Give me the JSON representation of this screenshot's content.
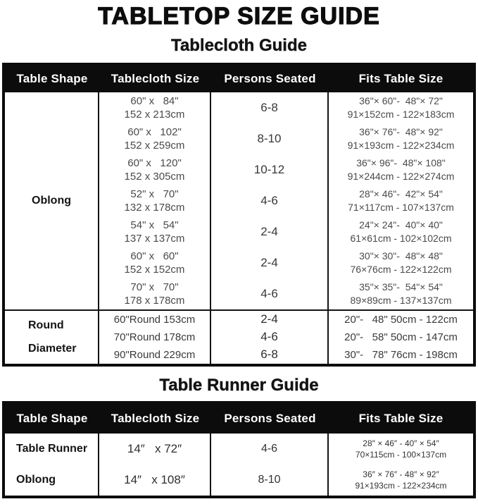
{
  "page": {
    "title": "TABLETOP SIZE GUIDE"
  },
  "tablecloth": {
    "title": "Tablecloth Guide",
    "headers": [
      "Table Shape",
      "Tablecloth Size",
      "Persons Seated",
      "Fits Table Size"
    ],
    "oblong": {
      "shape": "Oblong",
      "rows": [
        {
          "size_in": "60\" x   84\"",
          "size_cm": "152 x 213cm",
          "persons": "6-8",
          "fits_in": "36\"× 60\"-  48\"× 72\"",
          "fits_cm": "91×152cm - 122×183cm"
        },
        {
          "size_in": "60\" x   102\"",
          "size_cm": "152 x 259cm",
          "persons": "8-10",
          "fits_in": "36\"× 76\"-  48\"× 92\"",
          "fits_cm": "91×193cm - 122×234cm"
        },
        {
          "size_in": "60\" x   120\"",
          "size_cm": "152 x 305cm",
          "persons": "10-12",
          "fits_in": "36\"× 96\"-  48\"× 108\"",
          "fits_cm": "91×244cm - 122×274cm"
        },
        {
          "size_in": "52\" x   70\"",
          "size_cm": "132 x 178cm",
          "persons": "4-6",
          "fits_in": "28\"× 46\"-  42\"× 54\"",
          "fits_cm": "71×117cm - 107×137cm"
        },
        {
          "size_in": "54\" x   54\"",
          "size_cm": "137 x 137cm",
          "persons": "2-4",
          "fits_in": "24\"× 24\"-  40\"× 40\"",
          "fits_cm": "61×61cm - 102×102cm"
        },
        {
          "size_in": "60\" x   60\"",
          "size_cm": "152 x 152cm",
          "persons": "2-4",
          "fits_in": "30\"× 30\"-  48\"× 48\"",
          "fits_cm": "76×76cm - 122×122cm"
        },
        {
          "size_in": "70\" x   70\"",
          "size_cm": "178 x 178cm",
          "persons": "4-6",
          "fits_in": "35\"× 35\"-  54\"× 54\"",
          "fits_cm": "89×89cm - 137×137cm"
        }
      ]
    },
    "round": {
      "shape_lines": [
        "Round",
        "Diameter"
      ],
      "rows": [
        {
          "size": "60\"Round 153cm",
          "persons": "2-4",
          "fits": "20\"-   48\" 50cm - 122cm"
        },
        {
          "size": "70\"Round 178cm",
          "persons": "4-6",
          "fits": "20\"-   58\" 50cm - 147cm"
        },
        {
          "size": "90\"Round 229cm",
          "persons": "6-8",
          "fits": "30\"-   78\" 76cm - 198cm"
        }
      ]
    }
  },
  "runner": {
    "title": "Table Runner Guide",
    "headers": [
      "Table Shape",
      "Tablecloth Size",
      "Persons Seated",
      "Fits Table Size"
    ],
    "rows": [
      {
        "shape": "Table Runner",
        "size": "14″   x 72″",
        "persons": "4-6",
        "fits_in": "28″ × 46″ - 40″ × 54″",
        "fits_cm": "70×115cm - 100×137cm"
      },
      {
        "shape": "Oblong",
        "size": "14″   x 108″",
        "persons": "8-10",
        "fits_in": "36″ × 76″ - 48″ × 92″",
        "fits_cm": "91×193cm - 122×234cm"
      }
    ]
  },
  "chart_data": [
    {
      "type": "table",
      "title": "Tablecloth Guide",
      "columns": [
        "Table Shape",
        "Tablecloth Size",
        "Persons Seated",
        "Fits Table Size"
      ],
      "rows": [
        [
          "Oblong",
          "60\" x 84\" / 152 x 213cm",
          "6-8",
          "36\"×60\" - 48\"×72\" / 91×152cm - 122×183cm"
        ],
        [
          "Oblong",
          "60\" x 102\" / 152 x 259cm",
          "8-10",
          "36\"×76\" - 48\"×92\" / 91×193cm - 122×234cm"
        ],
        [
          "Oblong",
          "60\" x 120\" / 152 x 305cm",
          "10-12",
          "36\"×96\" - 48\"×108\" / 91×244cm - 122×274cm"
        ],
        [
          "Oblong",
          "52\" x 70\" / 132 x 178cm",
          "4-6",
          "28\"×46\" - 42\"×54\" / 71×117cm - 107×137cm"
        ],
        [
          "Oblong",
          "54\" x 54\" / 137 x 137cm",
          "2-4",
          "24\"×24\" - 40\"×40\" / 61×61cm - 102×102cm"
        ],
        [
          "Oblong",
          "60\" x 60\" / 152 x 152cm",
          "2-4",
          "30\"×30\" - 48\"×48\" / 76×76cm - 122×122cm"
        ],
        [
          "Oblong",
          "70\" x 70\" / 178 x 178cm",
          "4-6",
          "35\"×35\" - 54\"×54\" / 89×89cm - 137×137cm"
        ],
        [
          "Round Diameter",
          "60\"Round 153cm",
          "2-4",
          "20\"- 48\" 50cm - 122cm"
        ],
        [
          "Round Diameter",
          "70\"Round 178cm",
          "4-6",
          "20\"- 58\" 50cm - 147cm"
        ],
        [
          "Round Diameter",
          "90\"Round 229cm",
          "6-8",
          "30\"- 78\" 76cm - 198cm"
        ]
      ]
    },
    {
      "type": "table",
      "title": "Table Runner Guide",
      "columns": [
        "Table Shape",
        "Tablecloth Size",
        "Persons Seated",
        "Fits Table Size"
      ],
      "rows": [
        [
          "Table Runner",
          "14″ x 72″",
          "4-6",
          "28″×46″ - 40″×54″ / 70×115cm - 100×137cm"
        ],
        [
          "Oblong",
          "14″ x 108″",
          "8-10",
          "36″×76″ - 48″×92″ / 91×193cm - 122×234cm"
        ]
      ]
    }
  ],
  "colors": {
    "header_bg": "#0c0c0c",
    "header_text": "#ffffff",
    "body_text": "#4a4a4a",
    "border": "#141414"
  }
}
